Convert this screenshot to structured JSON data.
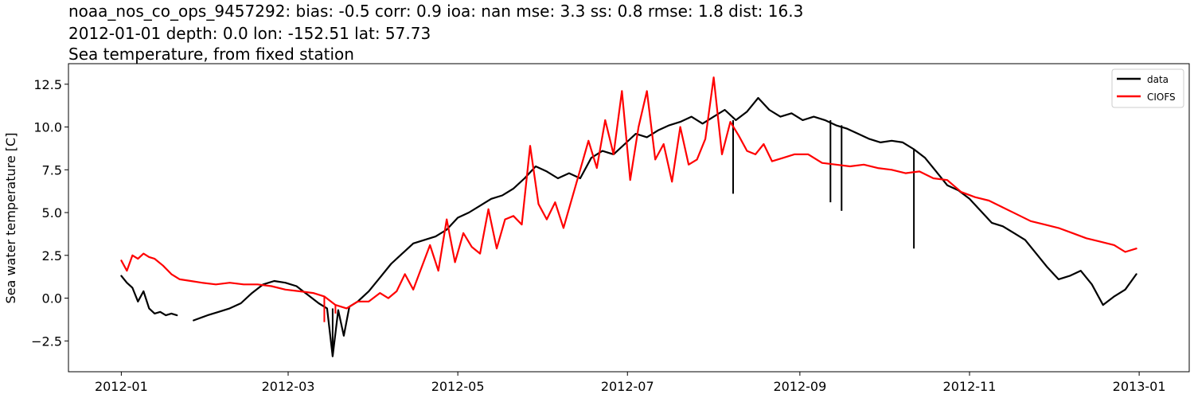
{
  "chart_data": {
    "type": "line",
    "title_lines": [
      "noaa_nos_co_ops_9457292: bias: -0.5  corr: 0.9  ioa: nan  mse: 3.3  ss: 0.8  rmse: 1.8  dist: 16.3",
      "2012-01-01 depth: 0.0 lon: -152.51 lat: 57.73",
      "Sea temperature, from fixed station"
    ],
    "xlabel": "",
    "ylabel": "Sea water temperature [C]",
    "x_type": "date",
    "xlim": [
      "2011-12-13",
      "2013-01-19"
    ],
    "ylim": [
      -4.3,
      13.7
    ],
    "x_ticks": [
      {
        "value": "2012-01-01",
        "label": "2012-01"
      },
      {
        "value": "2012-03-01",
        "label": "2012-03"
      },
      {
        "value": "2012-05-01",
        "label": "2012-05"
      },
      {
        "value": "2012-07-01",
        "label": "2012-07"
      },
      {
        "value": "2012-09-01",
        "label": "2012-09"
      },
      {
        "value": "2012-11-01",
        "label": "2012-11"
      },
      {
        "value": "2013-01-01",
        "label": "2013-01"
      }
    ],
    "y_ticks": [
      {
        "value": -2.5,
        "label": "−2.5"
      },
      {
        "value": 0.0,
        "label": "0.0"
      },
      {
        "value": 2.5,
        "label": "2.5"
      },
      {
        "value": 5.0,
        "label": "5.0"
      },
      {
        "value": 7.5,
        "label": "7.5"
      },
      {
        "value": 10.0,
        "label": "10.0"
      },
      {
        "value": 12.5,
        "label": "12.5"
      }
    ],
    "grid": false,
    "legend": "top-right",
    "series": [
      {
        "name": "data",
        "color": "#000000",
        "segments": [
          {
            "x": [
              "2012-01-01",
              "2012-01-03",
              "2012-01-05",
              "2012-01-07",
              "2012-01-09",
              "2012-01-11",
              "2012-01-13",
              "2012-01-15",
              "2012-01-17",
              "2012-01-19",
              "2012-01-21"
            ],
            "y": [
              1.3,
              0.9,
              0.6,
              -0.2,
              0.4,
              -0.6,
              -0.9,
              -0.8,
              -1.0,
              -0.9,
              -1.0
            ]
          },
          {
            "x": [
              "2012-01-27",
              "2012-02-01",
              "2012-02-05",
              "2012-02-09",
              "2012-02-13",
              "2012-02-17",
              "2012-02-21",
              "2012-02-25",
              "2012-02-29",
              "2012-03-04",
              "2012-03-08",
              "2012-03-12",
              "2012-03-15",
              "2012-03-17",
              "2012-03-19",
              "2012-03-21",
              "2012-03-23",
              "2012-03-26",
              "2012-03-30",
              "2012-04-03",
              "2012-04-07",
              "2012-04-11",
              "2012-04-15",
              "2012-04-19",
              "2012-04-23",
              "2012-04-27",
              "2012-05-01",
              "2012-05-05",
              "2012-05-09",
              "2012-05-13",
              "2012-05-17",
              "2012-05-21",
              "2012-05-25",
              "2012-05-29",
              "2012-06-02",
              "2012-06-06",
              "2012-06-10",
              "2012-06-14",
              "2012-06-18",
              "2012-06-22",
              "2012-06-26",
              "2012-06-30",
              "2012-07-04",
              "2012-07-08",
              "2012-07-12",
              "2012-07-16",
              "2012-07-20",
              "2012-07-24",
              "2012-07-28",
              "2012-08-01",
              "2012-08-05",
              "2012-08-09",
              "2012-08-13",
              "2012-08-17",
              "2012-08-21",
              "2012-08-25",
              "2012-08-29",
              "2012-09-02",
              "2012-09-06",
              "2012-09-10",
              "2012-09-14",
              "2012-09-18",
              "2012-09-22",
              "2012-09-26",
              "2012-09-30",
              "2012-10-04",
              "2012-10-08",
              "2012-10-12",
              "2012-10-16",
              "2012-10-20",
              "2012-10-24",
              "2012-10-28",
              "2012-11-01",
              "2012-11-05",
              "2012-11-09",
              "2012-11-13",
              "2012-11-17",
              "2012-11-21",
              "2012-11-25",
              "2012-11-29",
              "2012-12-03",
              "2012-12-07",
              "2012-12-11",
              "2012-12-15",
              "2012-12-19",
              "2012-12-23",
              "2012-12-27",
              "2012-12-31"
            ],
            "y": [
              -1.3,
              -1.0,
              -0.8,
              -0.6,
              -0.3,
              0.3,
              0.8,
              1.0,
              0.9,
              0.7,
              0.2,
              -0.3,
              -0.6,
              -3.4,
              -0.7,
              -2.2,
              -0.5,
              -0.2,
              0.4,
              1.2,
              2.0,
              2.6,
              3.2,
              3.4,
              3.6,
              4.0,
              4.7,
              5.0,
              5.4,
              5.8,
              6.0,
              6.4,
              7.0,
              7.7,
              7.4,
              7.0,
              7.3,
              7.0,
              8.2,
              8.6,
              8.4,
              9.0,
              9.6,
              9.4,
              9.8,
              10.1,
              10.3,
              10.6,
              10.2,
              10.6,
              11.0,
              10.4,
              10.9,
              11.7,
              11.0,
              10.6,
              10.8,
              10.4,
              10.6,
              10.4,
              10.1,
              9.9,
              9.6,
              9.3,
              9.1,
              9.2,
              9.1,
              8.7,
              8.2,
              7.4,
              6.6,
              6.3,
              5.8,
              5.1,
              4.4,
              4.2,
              3.8,
              3.4,
              2.6,
              1.8,
              1.1,
              1.3,
              1.6,
              0.8,
              -0.4,
              0.1,
              0.5,
              1.4
            ]
          }
        ],
        "spikes": [
          {
            "x": "2012-03-17",
            "y": -3.4
          },
          {
            "x": "2012-08-08",
            "y": 6.1
          },
          {
            "x": "2012-09-12",
            "y": 5.6
          },
          {
            "x": "2012-09-16",
            "y": 5.1
          },
          {
            "x": "2012-10-12",
            "y": 2.9
          }
        ]
      },
      {
        "name": "CIOFS",
        "color": "#ff0000",
        "segments": [
          {
            "x": [
              "2012-01-01",
              "2012-01-03",
              "2012-01-05",
              "2012-01-07",
              "2012-01-09",
              "2012-01-11",
              "2012-01-13",
              "2012-01-16",
              "2012-01-19",
              "2012-01-22",
              "2012-01-26",
              "2012-01-30",
              "2012-02-04",
              "2012-02-09",
              "2012-02-14",
              "2012-02-19",
              "2012-02-24",
              "2012-02-29",
              "2012-03-05",
              "2012-03-10",
              "2012-03-14",
              "2012-03-18",
              "2012-03-22",
              "2012-03-26",
              "2012-03-30",
              "2012-04-03",
              "2012-04-06",
              "2012-04-09",
              "2012-04-12",
              "2012-04-15",
              "2012-04-18",
              "2012-04-21",
              "2012-04-24",
              "2012-04-27",
              "2012-04-30",
              "2012-05-03",
              "2012-05-06",
              "2012-05-09",
              "2012-05-12",
              "2012-05-15",
              "2012-05-18",
              "2012-05-21",
              "2012-05-24",
              "2012-05-27",
              "2012-05-30",
              "2012-06-02",
              "2012-06-05",
              "2012-06-08",
              "2012-06-11",
              "2012-06-14",
              "2012-06-17",
              "2012-06-20",
              "2012-06-23",
              "2012-06-26",
              "2012-06-29",
              "2012-07-02",
              "2012-07-05",
              "2012-07-08",
              "2012-07-11",
              "2012-07-14",
              "2012-07-17",
              "2012-07-20",
              "2012-07-23",
              "2012-07-26",
              "2012-07-29",
              "2012-08-01",
              "2012-08-04",
              "2012-08-07",
              "2012-08-10",
              "2012-08-13",
              "2012-08-16",
              "2012-08-19",
              "2012-08-22",
              "2012-08-26",
              "2012-08-30",
              "2012-09-04",
              "2012-09-09",
              "2012-09-14",
              "2012-09-19",
              "2012-09-24",
              "2012-09-29",
              "2012-10-04",
              "2012-10-09",
              "2012-10-14",
              "2012-10-19",
              "2012-10-24",
              "2012-10-29",
              "2012-11-03",
              "2012-11-08",
              "2012-11-13",
              "2012-11-18",
              "2012-11-23",
              "2012-11-28",
              "2012-12-03",
              "2012-12-08",
              "2012-12-13",
              "2012-12-18",
              "2012-12-23",
              "2012-12-27",
              "2012-12-31"
            ],
            "y": [
              2.2,
              1.6,
              2.5,
              2.3,
              2.6,
              2.4,
              2.3,
              1.9,
              1.4,
              1.1,
              1.0,
              0.9,
              0.8,
              0.9,
              0.8,
              0.8,
              0.7,
              0.5,
              0.4,
              0.3,
              0.1,
              -0.4,
              -0.6,
              -0.2,
              -0.2,
              0.3,
              0.0,
              0.4,
              1.4,
              0.5,
              1.8,
              3.1,
              1.6,
              4.6,
              2.1,
              3.8,
              3.0,
              2.6,
              5.2,
              2.9,
              4.6,
              4.8,
              4.3,
              8.9,
              5.5,
              4.6,
              5.6,
              4.1,
              5.8,
              7.5,
              9.2,
              7.6,
              10.4,
              8.4,
              12.1,
              6.9,
              10.0,
              12.1,
              8.1,
              9.0,
              6.8,
              10.0,
              7.8,
              8.1,
              9.3,
              12.9,
              8.4,
              10.3,
              9.5,
              8.6,
              8.4,
              9.0,
              8.0,
              8.2,
              8.4,
              8.4,
              7.9,
              7.8,
              7.7,
              7.8,
              7.6,
              7.5,
              7.3,
              7.4,
              7.0,
              6.9,
              6.2,
              5.9,
              5.7,
              5.3,
              4.9,
              4.5,
              4.3,
              4.1,
              3.8,
              3.5,
              3.3,
              3.1,
              2.7,
              2.9
            ]
          }
        ],
        "spikes": [
          {
            "x": "2012-03-14",
            "y": -1.4
          },
          {
            "x": "2012-03-18",
            "y": -0.9
          }
        ]
      }
    ]
  }
}
